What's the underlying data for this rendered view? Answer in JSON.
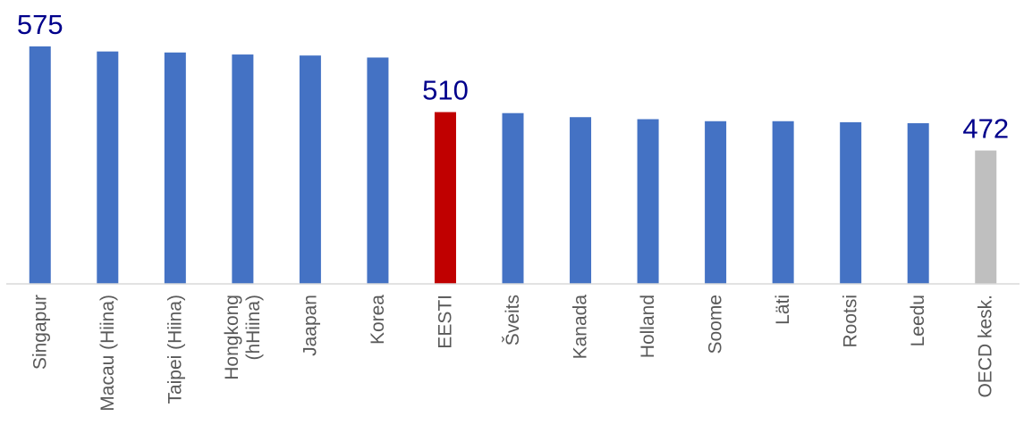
{
  "chart_data": {
    "type": "bar",
    "categories": [
      "Singapur",
      "Macau (Hiina)",
      "Taipei (Hiina)",
      "Hongkong (hHiina)",
      "Jaapan",
      "Korea",
      "EESTI",
      "Šveits",
      "Kanada",
      "Holland",
      "Soome",
      "Läti",
      "Rootsi",
      "Leedu",
      "OECD kesk."
    ],
    "category_lines": [
      [
        "Singapur"
      ],
      [
        "Macau (Hiina)"
      ],
      [
        "Taipei (Hiina)"
      ],
      [
        "Hongkong",
        "(hHiina)"
      ],
      [
        "Jaapan"
      ],
      [
        "Korea"
      ],
      [
        "EESTI"
      ],
      [
        "Šveits"
      ],
      [
        "Kanada"
      ],
      [
        "Holland"
      ],
      [
        "Soome"
      ],
      [
        "Läti"
      ],
      [
        "Rootsi"
      ],
      [
        "Leedu"
      ],
      [
        "OECD kesk."
      ]
    ],
    "values": [
      575,
      570,
      569,
      567,
      566,
      564,
      510,
      509,
      505,
      503,
      501,
      501,
      500,
      499,
      472
    ],
    "bar_colors": [
      "#4472c4",
      "#4472c4",
      "#4472c4",
      "#4472c4",
      "#4472c4",
      "#4472c4",
      "#c00000",
      "#4472c4",
      "#4472c4",
      "#4472c4",
      "#4472c4",
      "#4472c4",
      "#4472c4",
      "#4472c4",
      "#bfbfbf"
    ],
    "data_labels": {
      "Singapur": "575",
      "EESTI": "510",
      "OECD kesk.": "472"
    },
    "title": "",
    "xlabel": "",
    "ylabel": "",
    "ylim": [
      340,
      575
    ],
    "grid": false,
    "legend": "none"
  }
}
